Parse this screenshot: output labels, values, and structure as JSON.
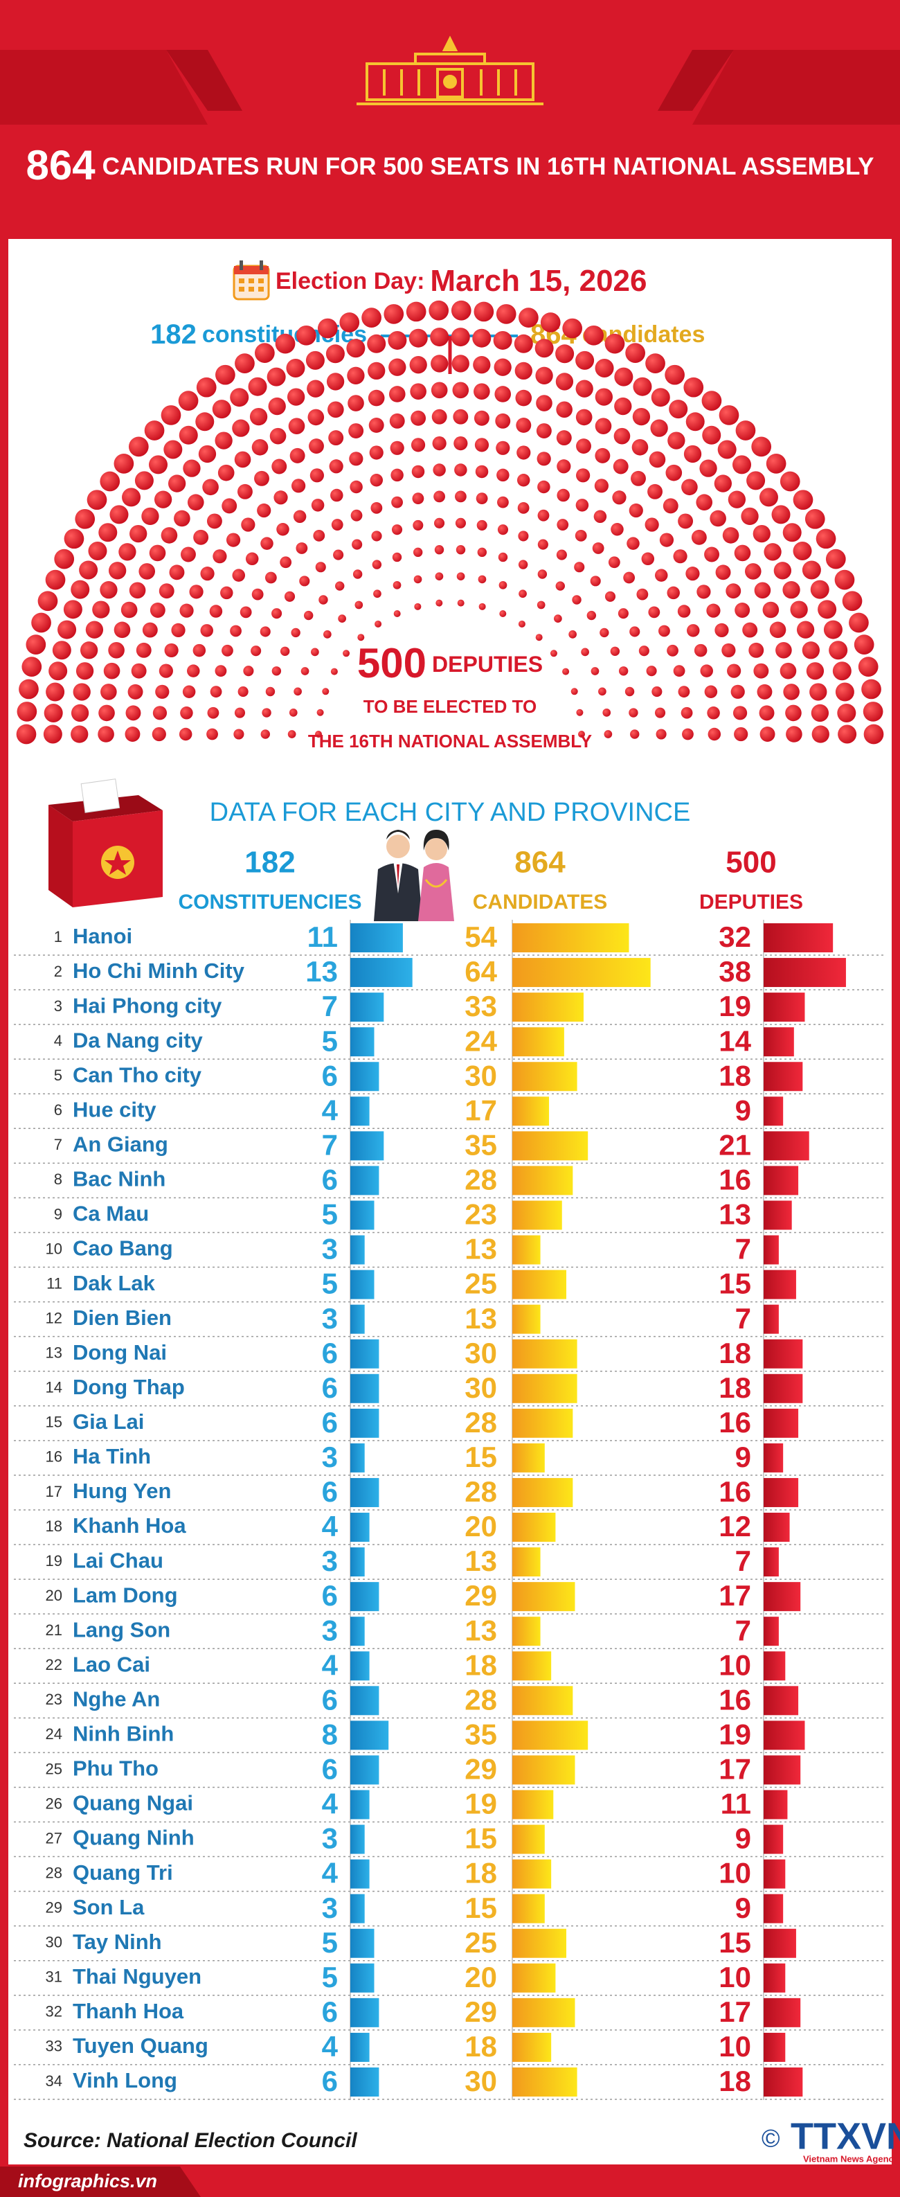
{
  "header": {
    "title_number": "864",
    "title_text": "CANDIDATES RUN FOR 500 SEATS IN 16TH NATIONAL ASSEMBLY"
  },
  "election": {
    "label": "Election Day:",
    "date": "March 15, 2026"
  },
  "summary": {
    "constituencies_number": "182",
    "constituencies_label": "constituencies",
    "candidates_number": "864",
    "candidates_label": "candidates"
  },
  "hemicycle": {
    "number": 500,
    "label": "DEPUTIES",
    "line1": "TO BE ELECTED TO",
    "line2": "THE 16TH NATIONAL ASSEMBLY"
  },
  "table": {
    "title": "DATA FOR EACH CITY AND PROVINCE",
    "columns": [
      {
        "number": "182",
        "label": "CONSTITUENCIES"
      },
      {
        "number": "864",
        "label": "CANDIDATES"
      },
      {
        "number": "500",
        "label": "DEPUTIES"
      }
    ]
  },
  "chart_data": {
    "type": "bar",
    "numbers": [
      1,
      2,
      3,
      4,
      5,
      6,
      7,
      8,
      9,
      10,
      11,
      12,
      13,
      14,
      15,
      16,
      17,
      18,
      19,
      20,
      21,
      22,
      23,
      24,
      25,
      26,
      27,
      28,
      29,
      30,
      31,
      32,
      33,
      34
    ],
    "categories": [
      "Hanoi",
      "Ho Chi Minh City",
      "Hai Phong city",
      "Da Nang city",
      "Can Tho city",
      "Hue city",
      "An Giang",
      "Bac Ninh",
      "Ca Mau",
      "Cao Bang",
      "Dak Lak",
      "Dien Bien",
      "Dong Nai",
      "Dong Thap",
      "Gia Lai",
      "Ha Tinh",
      "Hung Yen",
      "Khanh Hoa",
      "Lai Chau",
      "Lam Dong",
      "Lang Son",
      "Lao Cai",
      "Nghe An",
      "Ninh Binh",
      "Phu Tho",
      "Quang Ngai",
      "Quang Ninh",
      "Quang Tri",
      "Son La",
      "Tay Ninh",
      "Thai Nguyen",
      "Thanh Hoa",
      "Tuyen Quang",
      "Vinh Long"
    ],
    "series": [
      {
        "name": "CONSTITUENCIES",
        "color": "#1a9ad6",
        "values": [
          11,
          13,
          7,
          5,
          6,
          4,
          7,
          6,
          5,
          3,
          5,
          3,
          6,
          6,
          6,
          3,
          6,
          4,
          3,
          6,
          3,
          4,
          6,
          8,
          6,
          4,
          3,
          4,
          3,
          5,
          5,
          6,
          4,
          6
        ]
      },
      {
        "name": "CANDIDATES",
        "color": "#f2b124",
        "values": [
          54,
          64,
          33,
          24,
          30,
          17,
          35,
          28,
          23,
          13,
          25,
          13,
          30,
          30,
          28,
          15,
          28,
          20,
          13,
          29,
          13,
          18,
          28,
          35,
          29,
          19,
          15,
          18,
          15,
          25,
          20,
          29,
          18,
          30
        ]
      },
      {
        "name": "DEPUTIES",
        "color": "#d7182a",
        "values": [
          32,
          38,
          19,
          14,
          18,
          9,
          21,
          16,
          13,
          7,
          15,
          7,
          18,
          18,
          16,
          9,
          16,
          12,
          7,
          17,
          7,
          10,
          16,
          19,
          17,
          11,
          9,
          10,
          9,
          15,
          10,
          17,
          10,
          18
        ]
      }
    ]
  },
  "footer": {
    "source": "Source: National Election Council",
    "site": "infographics.vn",
    "copyright": "©",
    "logo": "TTXVN",
    "agency": "Vietnam News Agency"
  }
}
